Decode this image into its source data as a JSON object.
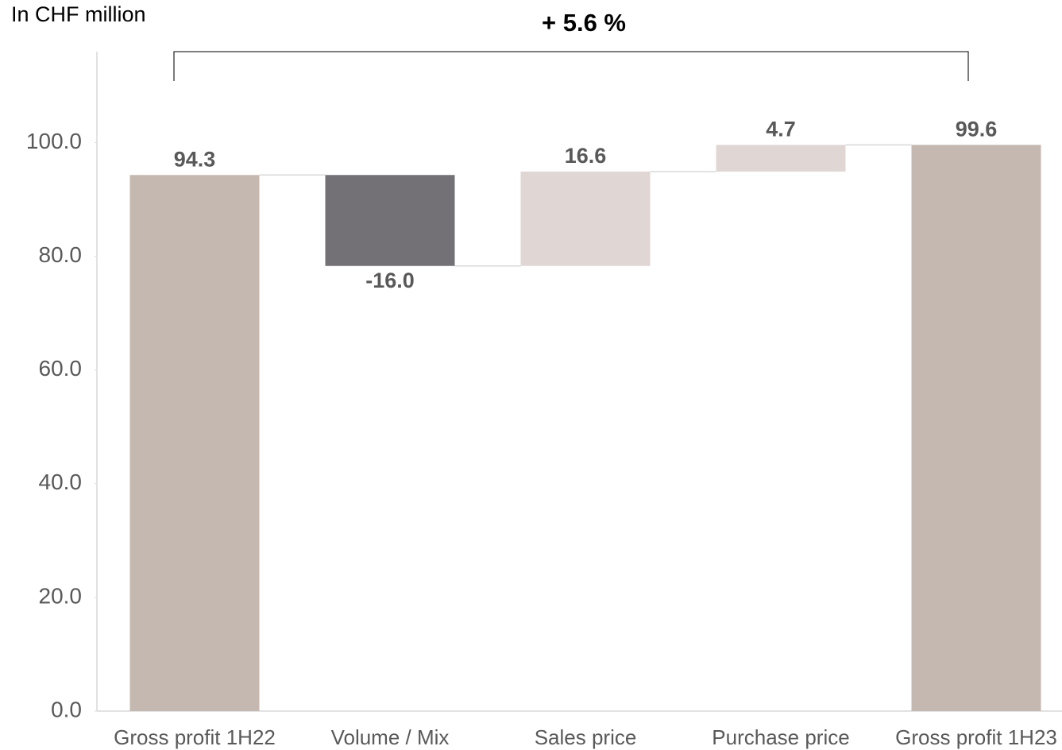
{
  "chart_data": {
    "type": "waterfall",
    "axis_label": "In CHF million",
    "annotation": "+ 5.6 %",
    "categories": [
      "Gross profit 1H22",
      "Volume / Mix",
      "Sales price",
      "Purchase price",
      "Gross profit 1H23"
    ],
    "values": [
      94.3,
      -16.0,
      16.6,
      4.7,
      99.6
    ],
    "value_labels": [
      "94.3",
      "-16.0",
      "16.6",
      "4.7",
      "99.6"
    ],
    "colors": [
      "#c5b8b0",
      "#737176",
      "#e0d7d5",
      "#e0d7d5",
      "#c5b8b0"
    ],
    "ylim": [
      0,
      116
    ],
    "yticks": [
      {
        "value": 0,
        "label": "0.0"
      },
      {
        "value": 20,
        "label": "20.0"
      },
      {
        "value": 40,
        "label": "40.0"
      },
      {
        "value": 60,
        "label": "60.0"
      },
      {
        "value": 80,
        "label": "80.0"
      },
      {
        "value": 100,
        "label": "100.0"
      }
    ],
    "grid": false
  }
}
